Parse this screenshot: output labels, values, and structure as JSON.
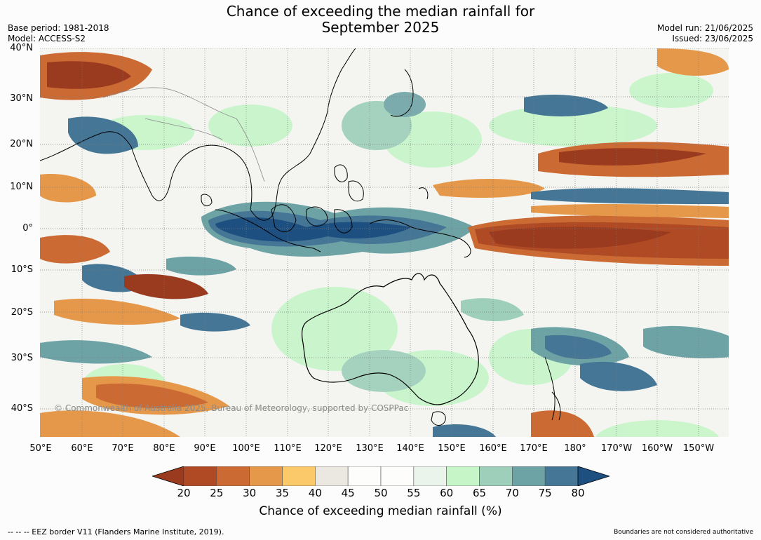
{
  "title_line1": "Chance of exceeding the median rainfall for",
  "title_line2": "September 2025",
  "base_period": "Base period: 1981-2018",
  "model": "Model: ACCESS-S2",
  "model_run": "Model run: 21/06/2025",
  "issued": "Issued: 23/06/2025",
  "lat_labels": [
    "40°N",
    "30°N",
    "20°N",
    "10°N",
    "0°",
    "10°S",
    "20°S",
    "30°S",
    "40°S"
  ],
  "lon_labels": [
    "50°E",
    "60°E",
    "70°E",
    "80°E",
    "90°E",
    "100°E",
    "110°E",
    "120°E",
    "130°E",
    "140°E",
    "150°E",
    "160°E",
    "170°E",
    "180°",
    "170°W",
    "160°W",
    "150°W"
  ],
  "watermark": "© Commonwealth of Australia 2025, Bureau of Meteorology, supported by COSPPac",
  "colorbar": {
    "ticks": [
      "20",
      "25",
      "30",
      "35",
      "40",
      "45",
      "50",
      "55",
      "60",
      "65",
      "70",
      "75",
      "80"
    ],
    "colors": [
      "#9a3a1f",
      "#b04a25",
      "#cc6a33",
      "#e6984a",
      "#fcc96a",
      "#ebe7e1",
      "#fdfdfb",
      "#fdfdfb",
      "#eaf4ea",
      "#c6f6c8",
      "#9dcfba",
      "#6ea3a6",
      "#457696",
      "#1d4f80"
    ],
    "label": "Chance of exceeding median rainfall (%)"
  },
  "footer_left": "--  --  -- EEZ border V11 (Flanders Marine Institute, 2019).",
  "footer_right": "Boundaries are not considered authoritative"
}
